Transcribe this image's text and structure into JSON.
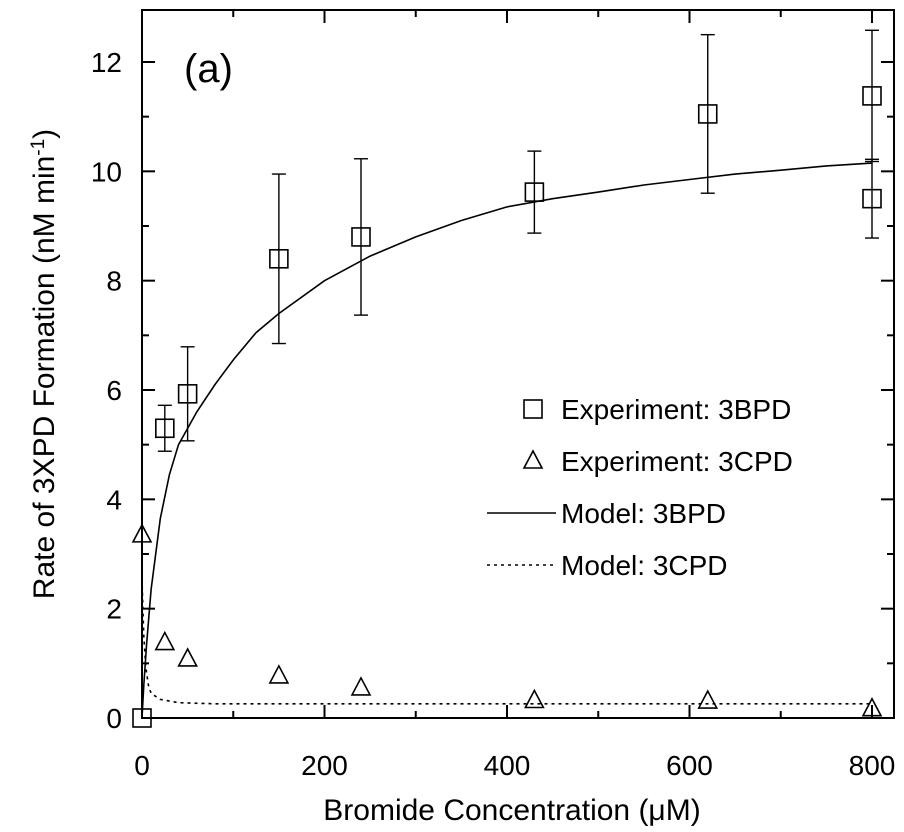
{
  "chart_data": {
    "type": "scatter",
    "panel_label": "(a)",
    "xlabel": "Bromide Concentration (μM)",
    "ylabel": "Rate of 3XPD Formation (nM min",
    "ylabel_sup": "-1",
    "ylabel_close": ")",
    "xlim": [
      0,
      800
    ],
    "ylim": [
      0,
      12.9
    ],
    "xticks": [
      0,
      200,
      400,
      600,
      800
    ],
    "yticks": [
      0,
      2,
      4,
      6,
      8,
      10,
      12
    ],
    "grid": false,
    "legend_position": "center-right",
    "series": [
      {
        "name": "Experiment: 3BPD",
        "kind": "points",
        "marker": "square",
        "points": [
          {
            "x": 0,
            "y": 0.0,
            "err": 0
          },
          {
            "x": 25,
            "y": 5.3,
            "err": 0.42
          },
          {
            "x": 50,
            "y": 5.93,
            "err": 0.86
          },
          {
            "x": 150,
            "y": 8.4,
            "err": 1.55
          },
          {
            "x": 240,
            "y": 8.8,
            "err": 1.43
          },
          {
            "x": 430,
            "y": 9.62,
            "err": 0.75
          },
          {
            "x": 620,
            "y": 11.05,
            "err": 1.45
          },
          {
            "x": 800,
            "y": 11.38,
            "err": 1.2
          },
          {
            "x": 800,
            "y": 9.5,
            "err": 0.72
          }
        ]
      },
      {
        "name": "Experiment: 3CPD",
        "kind": "points",
        "marker": "triangle",
        "points": [
          {
            "x": 0,
            "y": 3.35
          },
          {
            "x": 25,
            "y": 1.38
          },
          {
            "x": 50,
            "y": 1.08
          },
          {
            "x": 150,
            "y": 0.77
          },
          {
            "x": 240,
            "y": 0.55
          },
          {
            "x": 430,
            "y": 0.32
          },
          {
            "x": 620,
            "y": 0.31
          },
          {
            "x": 800,
            "y": 0.17
          }
        ]
      },
      {
        "name": "Model: 3BPD",
        "kind": "line",
        "style": "solid",
        "points": [
          {
            "x": 0,
            "y": 0
          },
          {
            "x": 2,
            "y": 0.6
          },
          {
            "x": 5,
            "y": 1.35
          },
          {
            "x": 10,
            "y": 2.35
          },
          {
            "x": 20,
            "y": 3.65
          },
          {
            "x": 30,
            "y": 4.45
          },
          {
            "x": 40,
            "y": 5.0
          },
          {
            "x": 60,
            "y": 5.6
          },
          {
            "x": 80,
            "y": 6.1
          },
          {
            "x": 100,
            "y": 6.55
          },
          {
            "x": 125,
            "y": 7.05
          },
          {
            "x": 150,
            "y": 7.4
          },
          {
            "x": 200,
            "y": 8.0
          },
          {
            "x": 250,
            "y": 8.45
          },
          {
            "x": 300,
            "y": 8.8
          },
          {
            "x": 350,
            "y": 9.1
          },
          {
            "x": 400,
            "y": 9.35
          },
          {
            "x": 450,
            "y": 9.5
          },
          {
            "x": 500,
            "y": 9.62
          },
          {
            "x": 550,
            "y": 9.75
          },
          {
            "x": 600,
            "y": 9.85
          },
          {
            "x": 650,
            "y": 9.95
          },
          {
            "x": 700,
            "y": 10.02
          },
          {
            "x": 750,
            "y": 10.1
          },
          {
            "x": 800,
            "y": 10.15
          }
        ]
      },
      {
        "name": "Model: 3CPD",
        "kind": "line",
        "style": "dotted",
        "points": [
          {
            "x": 0,
            "y": 2.55
          },
          {
            "x": 1,
            "y": 2.0
          },
          {
            "x": 2,
            "y": 1.5
          },
          {
            "x": 4,
            "y": 0.95
          },
          {
            "x": 7,
            "y": 0.6
          },
          {
            "x": 10,
            "y": 0.45
          },
          {
            "x": 20,
            "y": 0.34
          },
          {
            "x": 40,
            "y": 0.28
          },
          {
            "x": 80,
            "y": 0.26
          },
          {
            "x": 200,
            "y": 0.26
          },
          {
            "x": 400,
            "y": 0.26
          },
          {
            "x": 600,
            "y": 0.26
          },
          {
            "x": 800,
            "y": 0.26
          }
        ]
      }
    ]
  }
}
